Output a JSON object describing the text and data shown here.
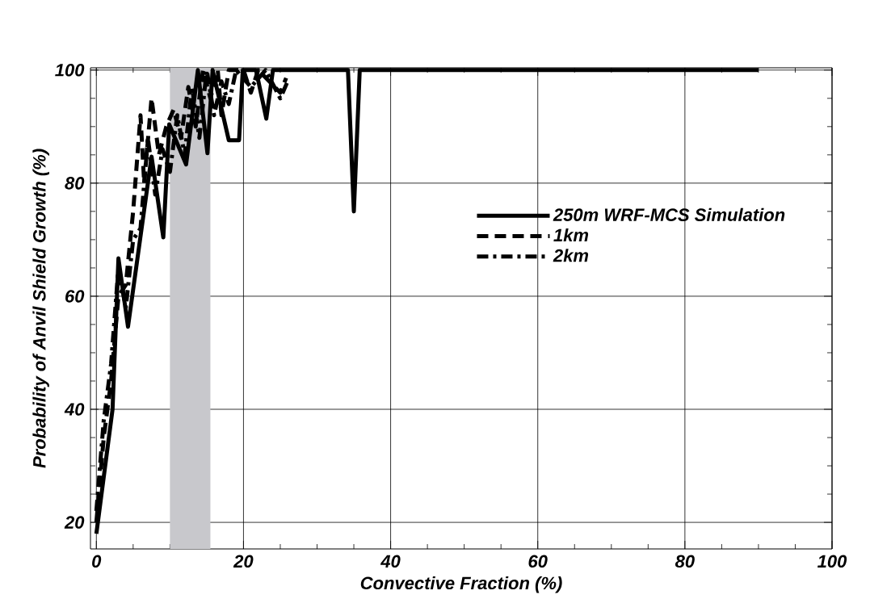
{
  "chart_data": {
    "type": "line",
    "xlabel": "Convective Fraction (%)",
    "ylabel": "Probability of Anvil Shield Growth (%)",
    "xlim": [
      -0.8,
      100
    ],
    "ylim": [
      15.3,
      100.4
    ],
    "xticks": [
      0,
      20,
      40,
      60,
      80,
      100
    ],
    "yticks": [
      20,
      40,
      60,
      80,
      100
    ],
    "grid": true,
    "legend": "right",
    "marker": "none",
    "bands": [
      {
        "axis": "x",
        "from": 10,
        "to": 15.5,
        "color": "#c8c8cc"
      }
    ],
    "series": [
      {
        "name": "250m WRF-MCS Simulation",
        "color": "#000000",
        "line_style": "solid",
        "x": [
          0,
          2.2,
          3.0,
          4.3,
          7.5,
          9.1,
          9.9,
          12.2,
          13.8,
          15.1,
          15.8,
          18.0,
          19.4,
          19.9,
          21.7,
          23.1,
          24.0,
          34.2,
          35.0,
          35.8,
          90
        ],
        "values": [
          18,
          40,
          66.7,
          54.6,
          84.7,
          70.4,
          90.4,
          83.3,
          100,
          85.3,
          100,
          87.6,
          87.6,
          100,
          100,
          91.4,
          100,
          100,
          75,
          100,
          100
        ]
      },
      {
        "name": "1km",
        "color": "#000000",
        "line_style": "dashed",
        "x": [
          0,
          1,
          2,
          3,
          4,
          5,
          6,
          6.5,
          7.5,
          8.5,
          9.5,
          10.5,
          11.5,
          12.5,
          13.5,
          14.5,
          15.5,
          16.5,
          17,
          18,
          20,
          21,
          22,
          25,
          25.8
        ],
        "values": [
          20,
          35,
          45,
          60,
          62,
          75,
          92,
          80,
          95,
          85,
          90,
          93,
          88,
          97,
          90,
          100,
          95,
          100,
          92,
          100,
          100,
          96,
          100,
          96,
          98.6
        ]
      },
      {
        "name": "2km",
        "color": "#000000",
        "line_style": "dashdotted",
        "x": [
          0,
          1,
          2,
          3,
          4,
          5,
          6,
          7,
          8,
          9,
          10,
          11,
          12,
          13,
          14,
          15,
          16,
          17,
          18,
          19,
          21,
          23,
          25,
          26
        ],
        "values": [
          22,
          38,
          48,
          65,
          58,
          70,
          72,
          88,
          78,
          86,
          82,
          92,
          85,
          97,
          88,
          100,
          92,
          98,
          94,
          100,
          97,
          100,
          95,
          98
        ]
      }
    ]
  }
}
